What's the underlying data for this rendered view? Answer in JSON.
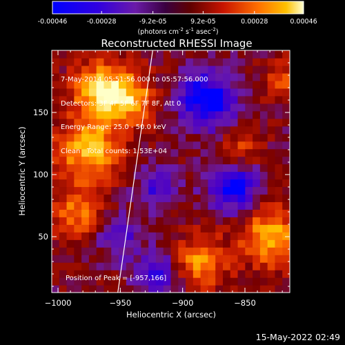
{
  "colorbar": {
    "tick_labels": [
      "-0.00046",
      "-0.00028",
      "-9.2e-05",
      "9.2e-05",
      "0.00028",
      "0.00046"
    ],
    "tick_values": [
      -0.00046,
      -0.00028,
      -9.2e-05,
      9.2e-05,
      0.00028,
      0.00046
    ],
    "range": [
      -0.00046,
      0.00046
    ],
    "unit_base": "(photons cm",
    "unit_exp1": "-2",
    "unit_mid": " s",
    "unit_exp2": "-1",
    "unit_tail": " asec",
    "unit_exp3": "-2",
    "unit_close": ")"
  },
  "chart_data": {
    "type": "heatmap",
    "title": "Reconstructed RHESSI Image",
    "xlabel": "Heliocentric X (arcsec)",
    "ylabel": "Heliocentric Y (arcsec)",
    "xlim": [
      -1005,
      -814
    ],
    "ylim": [
      5,
      200
    ],
    "x_ticks": [
      -1000,
      -950,
      -900,
      -850
    ],
    "y_ticks": [
      50,
      100,
      150
    ],
    "annotations": [
      "7-May-2014 05:51:56.000 to 05:57:56.000",
      "Detectors: 3F 4F 5F 6F 7F 8F, Att 0",
      "Energy Range: 25.0 - 50.0 keV",
      "Clean   Total counts: 1.53E+04"
    ],
    "peak_label": "Position of Peak = [-957,166]",
    "peak": [
      -957,
      166
    ],
    "limb_line": [
      [
        -952,
        5
      ],
      [
        -924,
        200
      ]
    ],
    "colormap": [
      "#0000ff",
      "#4a00c8",
      "#6a1aa8",
      "#780000",
      "#d02000",
      "#ff6a00",
      "#ffc000",
      "#ffffc8"
    ],
    "grid_size": [
      32,
      32
    ],
    "sources": [
      {
        "x": -965,
        "y": 168,
        "sigma": 16,
        "amplitude": 0.00046
      },
      {
        "x": -975,
        "y": 120,
        "sigma": 18,
        "amplitude": 0.0004
      },
      {
        "x": -940,
        "y": 160,
        "sigma": 14,
        "amplitude": 0.00032
      },
      {
        "x": -985,
        "y": 70,
        "sigma": 14,
        "amplitude": 0.00028
      },
      {
        "x": -830,
        "y": 50,
        "sigma": 16,
        "amplitude": 0.0004
      },
      {
        "x": -885,
        "y": 30,
        "sigma": 14,
        "amplitude": 0.00034
      },
      {
        "x": -820,
        "y": 175,
        "sigma": 10,
        "amplitude": 0.00026
      },
      {
        "x": -855,
        "y": 120,
        "sigma": 10,
        "amplitude": 0.00022
      },
      {
        "x": -880,
        "y": 160,
        "sigma": 16,
        "amplitude": -0.00045
      },
      {
        "x": -860,
        "y": 90,
        "sigma": 14,
        "amplitude": -0.0004
      },
      {
        "x": -920,
        "y": 90,
        "sigma": 12,
        "amplitude": -0.00025
      },
      {
        "x": -950,
        "y": 50,
        "sigma": 12,
        "amplitude": -0.00025
      },
      {
        "x": -920,
        "y": 20,
        "sigma": 12,
        "amplitude": -0.0003
      }
    ]
  },
  "timestamp": "15-May-2022 02:49"
}
